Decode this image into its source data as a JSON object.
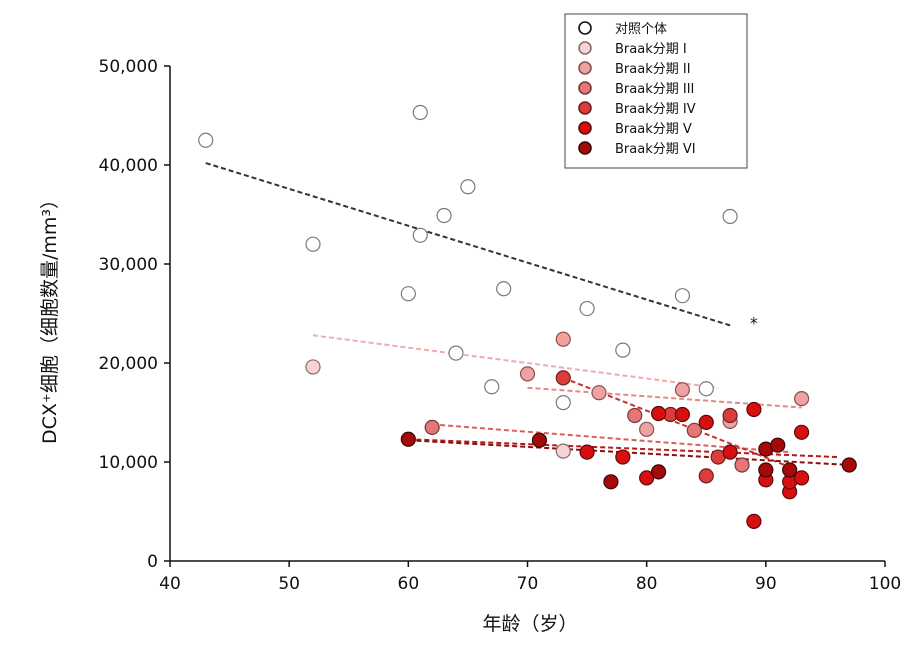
{
  "chart_data": {
    "type": "scatter",
    "title": "",
    "xlabel": "年龄（岁）",
    "ylabel": "DCX⁺细胞（细胞数量/mm³）",
    "xlim": [
      40,
      100
    ],
    "ylim": [
      0,
      50000
    ],
    "x_ticks": [
      40,
      50,
      60,
      70,
      80,
      90,
      100
    ],
    "y_ticks": [
      0,
      10000,
      20000,
      30000,
      40000,
      50000
    ],
    "x_tick_labels": [
      "40",
      "50",
      "60",
      "70",
      "80",
      "90",
      "100"
    ],
    "y_tick_labels": [
      "0",
      "10,000",
      "20,000",
      "30,000",
      "40,000",
      "50,000"
    ],
    "grid": false,
    "legend_position": "top-right",
    "annotation": "*",
    "annotation_point": [
      89,
      24000
    ],
    "series": [
      {
        "name": "对照个体",
        "color": "#ffffff",
        "stroke": "#7a7a7a",
        "trend_color": "#333333",
        "trend": [
          [
            43,
            40200
          ],
          [
            87,
            23800
          ]
        ],
        "points": [
          [
            43,
            42500
          ],
          [
            52,
            32000
          ],
          [
            60,
            27000
          ],
          [
            61,
            45300
          ],
          [
            61,
            32900
          ],
          [
            63,
            34900
          ],
          [
            64,
            21000
          ],
          [
            65,
            37800
          ],
          [
            67,
            17600
          ],
          [
            68,
            27500
          ],
          [
            73,
            16000
          ],
          [
            75,
            25500
          ],
          [
            78,
            21300
          ],
          [
            83,
            26800
          ],
          [
            85,
            17400
          ],
          [
            87,
            34800
          ]
        ]
      },
      {
        "name": "Braak分期 I",
        "color": "#f6d4d4",
        "stroke": "#8a6a6a",
        "trend_color": "#f2aaaa",
        "trend": [
          [
            52,
            22800
          ],
          [
            86,
            17500
          ]
        ],
        "points": [
          [
            52,
            19600
          ],
          [
            73,
            11100
          ]
        ]
      },
      {
        "name": "Braak分期 II",
        "color": "#eea2a2",
        "stroke": "#8a5050",
        "trend_color": "#e58888",
        "trend": [
          [
            70,
            17500
          ],
          [
            93,
            15500
          ]
        ],
        "points": [
          [
            70,
            18900
          ],
          [
            73,
            22400
          ],
          [
            76,
            17000
          ],
          [
            80,
            13300
          ],
          [
            83,
            17300
          ],
          [
            87,
            14100
          ],
          [
            93,
            16400
          ]
        ]
      },
      {
        "name": "Braak分期 III",
        "color": "#e47676",
        "stroke": "#7a3838",
        "trend_color": "#d86060",
        "trend": [
          [
            62,
            13800
          ],
          [
            92,
            11000
          ]
        ],
        "points": [
          [
            62,
            13500
          ],
          [
            79,
            14700
          ],
          [
            84,
            13200
          ],
          [
            88,
            9700
          ]
        ]
      },
      {
        "name": "Braak分期 IV",
        "color": "#dd3c3c",
        "stroke": "#6a2020",
        "trend_color": "#c83030",
        "trend": [
          [
            73,
            18500
          ],
          [
            92,
            9500
          ]
        ],
        "points": [
          [
            73,
            18500
          ],
          [
            82,
            14800
          ],
          [
            85,
            8600
          ],
          [
            86,
            10500
          ],
          [
            87,
            14700
          ]
        ]
      },
      {
        "name": "Braak分期 V",
        "color": "#d80f0f",
        "stroke": "#5a0a0a",
        "trend_color": "#b81818",
        "trend": [
          [
            60,
            12300
          ],
          [
            96,
            10500
          ]
        ],
        "points": [
          [
            75,
            11000
          ],
          [
            78,
            10500
          ],
          [
            80,
            8400
          ],
          [
            81,
            14900
          ],
          [
            83,
            14800
          ],
          [
            85,
            14000
          ],
          [
            87,
            11000
          ],
          [
            89,
            4000
          ],
          [
            89,
            15300
          ],
          [
            90,
            8200
          ],
          [
            92,
            7000
          ],
          [
            92,
            8000
          ],
          [
            93,
            8400
          ],
          [
            93,
            13000
          ]
        ]
      },
      {
        "name": "Braak分期 VI",
        "color": "#a50a0a",
        "stroke": "#3a0505",
        "trend_color": "#8a1010",
        "trend": [
          [
            60,
            12200
          ],
          [
            97,
            9700
          ]
        ],
        "points": [
          [
            60,
            12300
          ],
          [
            71,
            12200
          ],
          [
            77,
            8000
          ],
          [
            81,
            9000
          ],
          [
            90,
            11300
          ],
          [
            90,
            9200
          ],
          [
            91,
            11700
          ],
          [
            92,
            9200
          ],
          [
            97,
            9700
          ]
        ]
      }
    ]
  }
}
